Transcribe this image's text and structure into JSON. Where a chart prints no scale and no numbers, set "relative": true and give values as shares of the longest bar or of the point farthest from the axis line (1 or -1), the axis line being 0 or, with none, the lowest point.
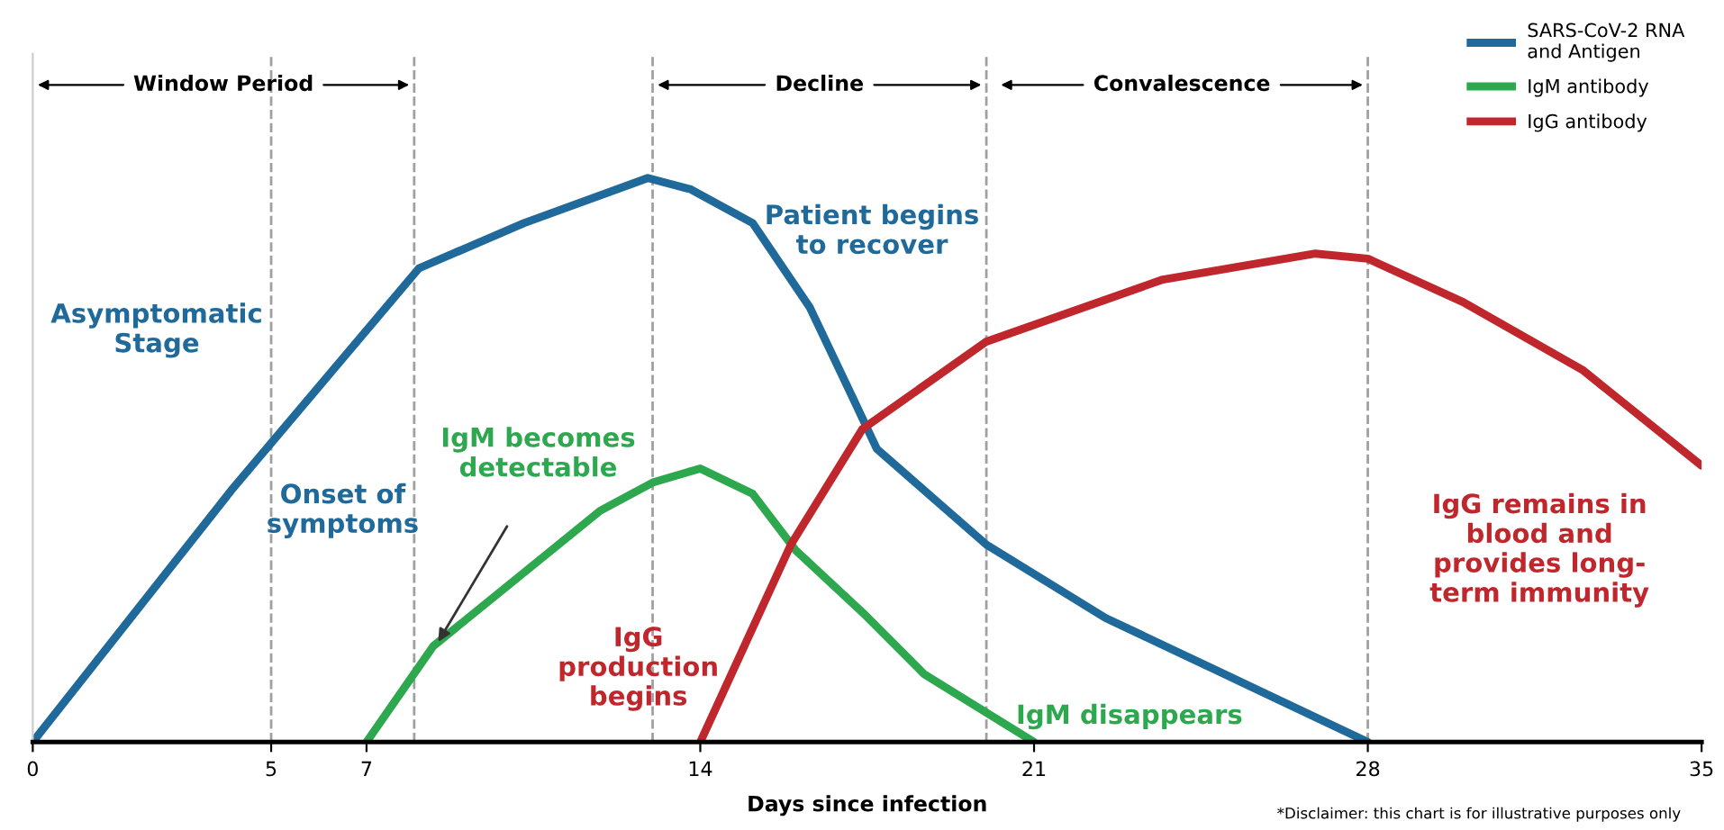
{
  "chart_data": {
    "type": "line",
    "xlabel": "Days since infection",
    "relative": true,
    "xlim": [
      0,
      35
    ],
    "xticks": [
      0,
      5,
      7,
      14,
      21,
      28,
      35
    ],
    "tick_labels": "x",
    "legend": "top right",
    "line_style": "solid",
    "series": [
      {
        "name": "SARS-CoV-2 RNA\nand Antigen",
        "color": "#1f6a9a",
        "x": [
          0,
          4.2,
          8.1,
          10.3,
          12.9,
          13.8,
          15.1,
          16.3,
          17.2,
          17.7,
          20,
          22.5,
          25,
          28
        ],
        "values": [
          0,
          0.45,
          0.84,
          0.92,
          1.0,
          0.98,
          0.92,
          0.77,
          0.61,
          0.52,
          0.35,
          0.22,
          0.12,
          0
        ]
      },
      {
        "name": "IgM antibody",
        "color": "#2ea84f",
        "x": [
          7,
          8.4,
          11.9,
          13,
          14,
          15.1,
          16,
          17.4,
          18.7,
          21
        ],
        "values": [
          0,
          0.17,
          0.41,
          0.46,
          0.485,
          0.44,
          0.34,
          0.23,
          0.12,
          0
        ]
      },
      {
        "name": "IgG antibody",
        "color": "#c0272d",
        "x": [
          14,
          15.9,
          17.4,
          20,
          23.7,
          26.9,
          28,
          30,
          32.5,
          35
        ],
        "values": [
          0,
          0.35,
          0.555,
          0.71,
          0.82,
          0.866,
          0.857,
          0.78,
          0.66,
          0.49
        ]
      }
    ],
    "ref_lines": [
      {
        "axis": "x",
        "value": 5,
        "color": "#a0a0a0",
        "line_style": "dashed"
      },
      {
        "axis": "x",
        "value": 8,
        "color": "#a0a0a0",
        "line_style": "dashed"
      },
      {
        "axis": "x",
        "value": 13,
        "color": "#a0a0a0",
        "line_style": "dashed"
      },
      {
        "axis": "x",
        "value": 20,
        "color": "#a0a0a0",
        "line_style": "dashed"
      },
      {
        "axis": "x",
        "value": 28,
        "color": "#a0a0a0",
        "line_style": "dashed"
      }
    ],
    "annotations": [
      "Window Period",
      "Decline",
      "Convalescence",
      "Asymptomatic\nStage",
      "Onset of\nsymptoms",
      "IgM becomes\ndetectable",
      "Patient begins\nto recover",
      "IgG\nproduction\nbegins",
      "IgG remains in\nblood and\nprovides long-\nterm immunity",
      "IgM disappears",
      "*Disclaimer: this chart is for illustrative purposes only"
    ]
  }
}
